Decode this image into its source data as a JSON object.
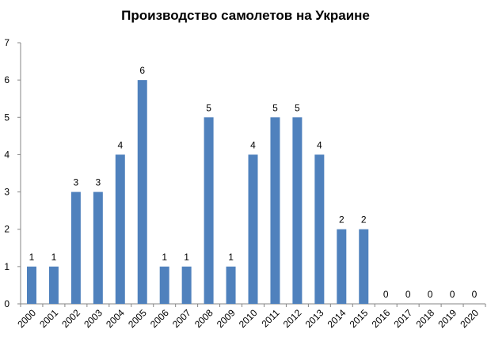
{
  "chart_data": {
    "type": "bar",
    "title": "Производство самолетов на Украине",
    "xlabel": "",
    "ylabel": "",
    "ylim": [
      0,
      7
    ],
    "yticks": [
      0,
      1,
      2,
      3,
      4,
      5,
      6,
      7
    ],
    "grid": false,
    "legend": null,
    "bar_color": "#4F81BD",
    "data_labels": true,
    "categories": [
      "2000",
      "2001",
      "2002",
      "2003",
      "2004",
      "2005",
      "2006",
      "2007",
      "2008",
      "2009",
      "2010",
      "2011",
      "2012",
      "2013",
      "2014",
      "2015",
      "2016",
      "2017",
      "2018",
      "2019",
      "2020"
    ],
    "values": [
      1,
      1,
      3,
      3,
      4,
      6,
      1,
      1,
      5,
      1,
      4,
      5,
      5,
      4,
      2,
      2,
      0,
      0,
      0,
      0,
      0
    ]
  }
}
